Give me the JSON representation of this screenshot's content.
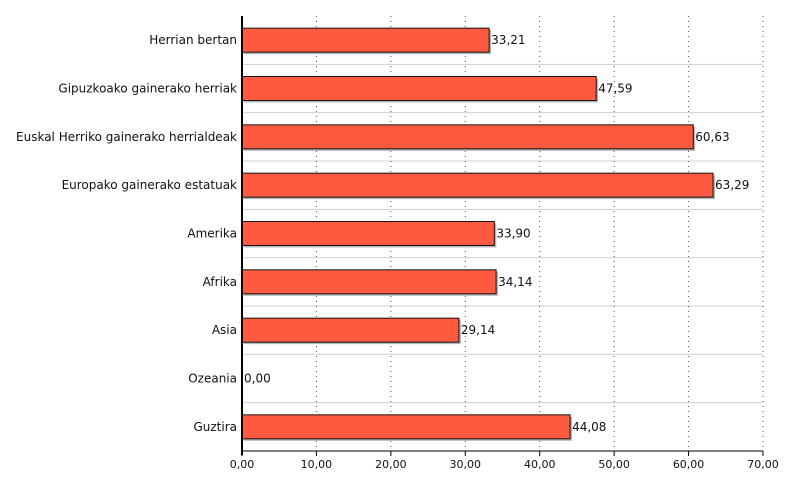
{
  "chart_data": {
    "type": "bar",
    "orientation": "horizontal",
    "categories": [
      "Herrian bertan",
      "Gipuzkoako gainerako herriak",
      "Euskal Herriko gainerako herrialdeak",
      "Europako gainerako estatuak",
      "Amerika",
      "Afrika",
      "Asia",
      "Ozeania",
      "Guztira"
    ],
    "values": [
      33.21,
      47.59,
      60.63,
      63.29,
      33.9,
      34.14,
      29.14,
      0.0,
      44.08
    ],
    "value_labels": [
      "33,21",
      "47,59",
      "60,63",
      "63,29",
      "33,90",
      "34,14",
      "29,14",
      "0,00",
      "44,08"
    ],
    "xlim": [
      0,
      70
    ],
    "xticks": [
      0,
      10,
      20,
      30,
      40,
      50,
      60,
      70
    ],
    "xtick_labels": [
      "0,00",
      "10,00",
      "20,00",
      "30,00",
      "40,00",
      "50,00",
      "60,00",
      "70,00"
    ],
    "title": "",
    "xlabel": "",
    "ylabel": "",
    "grid": "vertical-dotted",
    "colors": {
      "bar_fill": "#ff5a40",
      "bar_stroke": "#111111",
      "bar_shadow": "#b7b7b7",
      "grid": "#555555",
      "separator": "#d0d0d0",
      "axis": "#000000"
    }
  }
}
